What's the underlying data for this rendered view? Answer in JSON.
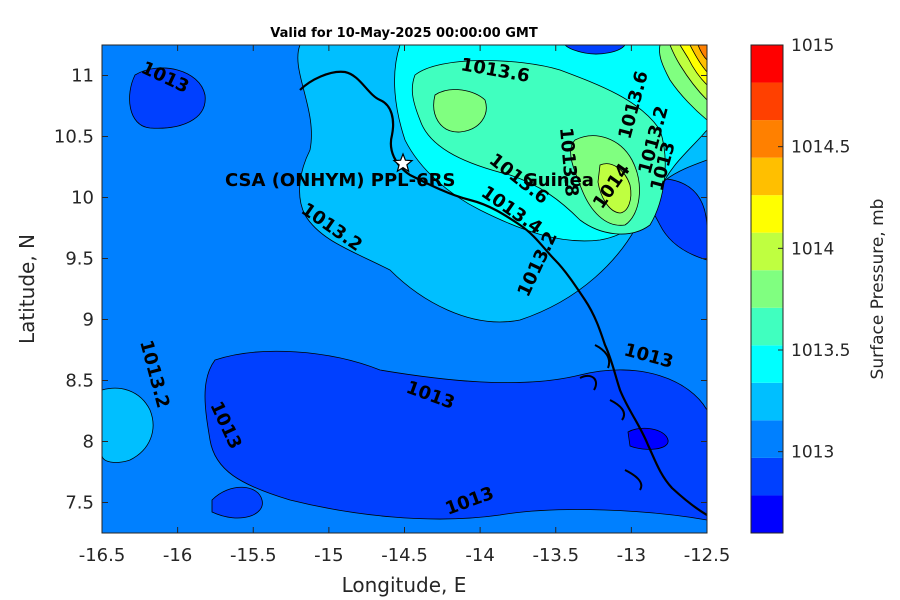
{
  "title": "Valid for 10-May-2025 00:00:00 GMT",
  "x_axis": {
    "label": "Longitude, E",
    "ticks": [
      "-16.5",
      "-16",
      "-15.5",
      "-15",
      "-14.5",
      "-14",
      "-13.5",
      "-13",
      "-12.5"
    ],
    "range": [
      -16.5,
      -12.5
    ]
  },
  "y_axis": {
    "label": "Latitude, N",
    "ticks": [
      "7.5",
      "8",
      "8.5",
      "9",
      "9.5",
      "10",
      "10.5",
      "11"
    ],
    "range": [
      7.25,
      11.25
    ]
  },
  "colorbar": {
    "label": "Surface Pressure, mb",
    "ticks": [
      "1013",
      "1013.5",
      "1014",
      "1014.5",
      "1015"
    ],
    "range": [
      1012.6,
      1015.0
    ],
    "colors": [
      "#0000ff",
      "#0040ff",
      "#0080ff",
      "#00bfff",
      "#00ffff",
      "#40ffbf",
      "#80ff80",
      "#bfff40",
      "#ffff00",
      "#ffbf00",
      "#ff8000",
      "#ff4000",
      "#ff0000"
    ]
  },
  "contour_labels": [
    "1013",
    "1013.6",
    "1013.2",
    "1013.2",
    "1013",
    "1013",
    "1013",
    "1013",
    "1013.6",
    "1013.4",
    "1013.8",
    "1014",
    "1013",
    "1013.2",
    "1013.6",
    "1013.2"
  ],
  "places": {
    "station": "CSA (ONHYM) PPL-6RS",
    "country": "Guinea"
  },
  "station_marker": {
    "lon": -14.5,
    "lat": 10.28
  }
}
